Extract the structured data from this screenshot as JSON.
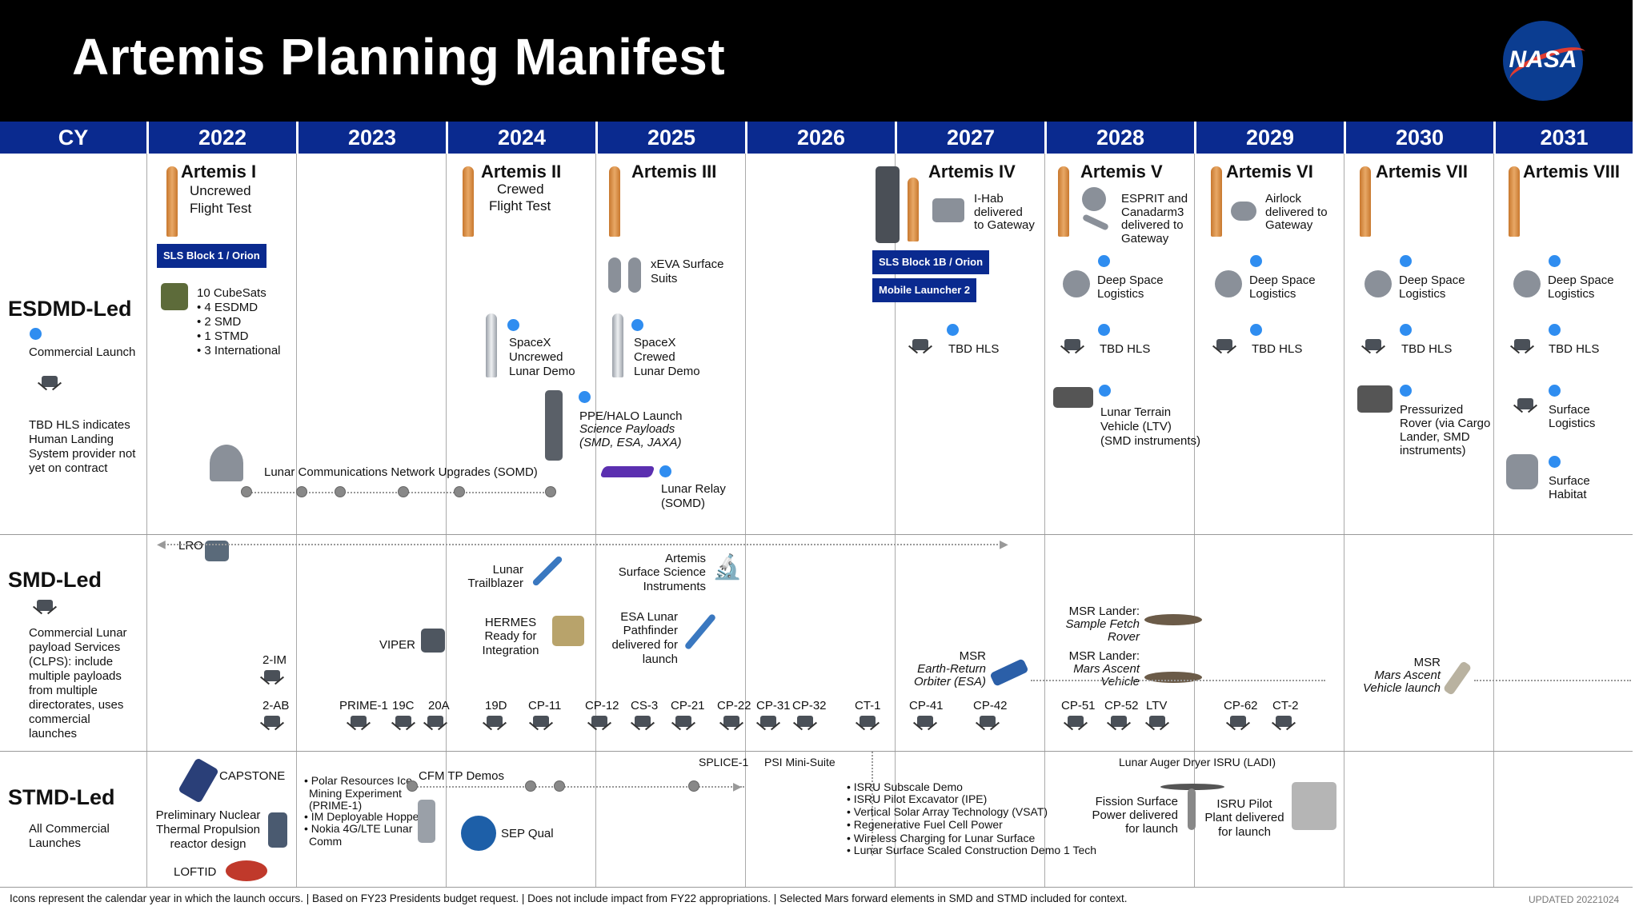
{
  "title": "Artemis Planning Manifest",
  "logo": {
    "text": "NASA"
  },
  "years": [
    "CY",
    "2022",
    "2023",
    "2024",
    "2025",
    "2026",
    "2027",
    "2028",
    "2029",
    "2030",
    "2031"
  ],
  "sections": {
    "esdmd": {
      "label": "ESDMD-Led",
      "legend_launch": "Commercial Launch",
      "legend_hls": "TBD HLS indicates Human Landing System provider not yet on contract"
    },
    "smd": {
      "label": "SMD-Led",
      "desc": "Commercial Lunar payload Services (CLPS): include multiple payloads from multiple directorates, uses commercial launches"
    },
    "stmd": {
      "label": "STMD-Led",
      "desc": "All Commercial Launches"
    }
  },
  "artemis": [
    {
      "name": "Artemis I",
      "sub": [
        "Uncrewed",
        "Flight Test"
      ]
    },
    {
      "name": "Artemis II",
      "sub": [
        "Crewed",
        "Flight Test"
      ]
    },
    {
      "name": "Artemis III",
      "sub": []
    },
    {
      "name": "Artemis IV",
      "sub": []
    },
    {
      "name": "Artemis V",
      "sub": []
    },
    {
      "name": "Artemis VI",
      "sub": []
    },
    {
      "name": "Artemis VII",
      "sub": []
    },
    {
      "name": "Artemis VIII",
      "sub": []
    }
  ],
  "esdmd_items": {
    "sls_block1": "SLS Block 1 / Orion",
    "cubesats": "10 CubeSats",
    "cubesat_list": [
      "• 4 ESDMD",
      "• 2 SMD",
      "• 1 STMD",
      "• 3 International"
    ],
    "comm_network": "Lunar Communications Network Upgrades (SOMD)",
    "spacex_uncrewed": [
      "SpaceX",
      "Uncrewed",
      "Lunar Demo"
    ],
    "ppe_halo": "PPE/HALO Launch",
    "science_payloads": [
      "Science Payloads",
      "(SMD, ESA, JAXA)"
    ],
    "xeva": [
      "xEVA Surface",
      "Suits"
    ],
    "spacex_crewed": [
      "SpaceX",
      "Crewed",
      "Lunar Demo"
    ],
    "lunar_relay": [
      "Lunar Relay",
      "(SOMD)"
    ],
    "ihab": [
      "I-Hab",
      "delivered",
      "to Gateway"
    ],
    "sls_block1b": "SLS Block 1B / Orion",
    "mobile_launcher": "Mobile Launcher 2",
    "tbd_hls": "TBD HLS",
    "esprit": [
      "ESPRIT and",
      "Canadarm3",
      "delivered to",
      "Gateway"
    ],
    "deep_space": [
      "Deep Space",
      "Logistics"
    ],
    "ltv": [
      "Lunar Terrain",
      "Vehicle (LTV)",
      "(SMD instruments)"
    ],
    "airlock": [
      "Airlock",
      "delivered to",
      "Gateway"
    ],
    "pressurized_rover": [
      "Pressurized",
      "Rover (via Cargo",
      "Lander, SMD",
      "instruments)"
    ],
    "surface_logistics": [
      "Surface",
      "Logistics"
    ],
    "surface_habitat": [
      "Surface",
      "Habitat"
    ]
  },
  "smd_items": {
    "lro": "LRO",
    "lunar_trailblazer": [
      "Lunar",
      "Trailblazer"
    ],
    "artemis_instruments": [
      "Artemis",
      "Surface Science",
      "Instruments"
    ],
    "hermes": [
      "HERMES",
      "Ready for",
      "Integration"
    ],
    "esa_pathfinder": [
      "ESA Lunar",
      "Pathfinder",
      "delivered for",
      "launch"
    ],
    "viper": "VIPER",
    "msr_sfr": [
      "MSR Lander:",
      "Sample Fetch",
      "Rover"
    ],
    "msr_mav": [
      "MSR Lander:",
      "Mars Ascent",
      "Vehicle"
    ],
    "msr_ero": [
      "MSR",
      "Earth-Return",
      "Orbiter (ESA)"
    ],
    "msr_launch": [
      "MSR",
      "Mars Ascent",
      "Vehicle launch"
    ],
    "clps": [
      "2-IM",
      "2-AB",
      "PRIME-1",
      "19C",
      "20A",
      "19D",
      "CP-11",
      "CP-12",
      "CS-3",
      "CP-21",
      "CP-22",
      "CP-31",
      "CP-32",
      "CT-1",
      "CP-41",
      "CP-42",
      "CP-51",
      "CP-52",
      "LTV",
      "CP-62",
      "CT-2"
    ]
  },
  "stmd_items": {
    "capstone": "CAPSTONE",
    "nuclear": [
      "Preliminary Nuclear",
      "Thermal Propulsion",
      "reactor design"
    ],
    "loftid": "LOFTID",
    "list2023": [
      "Polar Resources Ice",
      "Mining Experiment",
      "(PRIME-1)",
      "IM Deployable Hopper",
      "Nokia 4G/LTE Lunar",
      "Comm"
    ],
    "cfm": "CFM TP Demos",
    "sep": "SEP Qual",
    "splice": "SPLICE-1",
    "psi": "PSI Mini-Suite",
    "list2026": [
      "ISRU Subscale Demo",
      "ISRU Pilot Excavator (IPE)",
      "Vertical Solar Array Technology (VSAT)",
      "Regenerative Fuel Cell Power",
      "Wireless Charging for Lunar Surface",
      "Lunar Surface Scaled Construction Demo 1 Tech"
    ],
    "ladi": "Lunar Auger Dryer ISRU (LADI)",
    "fission": [
      "Fission Surface",
      "Power delivered",
      "for launch"
    ],
    "isru_pilot": [
      "ISRU Pilot",
      "Plant delivered",
      "for launch"
    ]
  },
  "footer": "Icons represent the calendar year in which the launch occurs. | Based on FY23 Presidents budget request. | Does not include impact from FY22 appropriations. | Selected Mars forward elements in SMD and STMD included for context.",
  "updated": "UPDATED 20221024"
}
